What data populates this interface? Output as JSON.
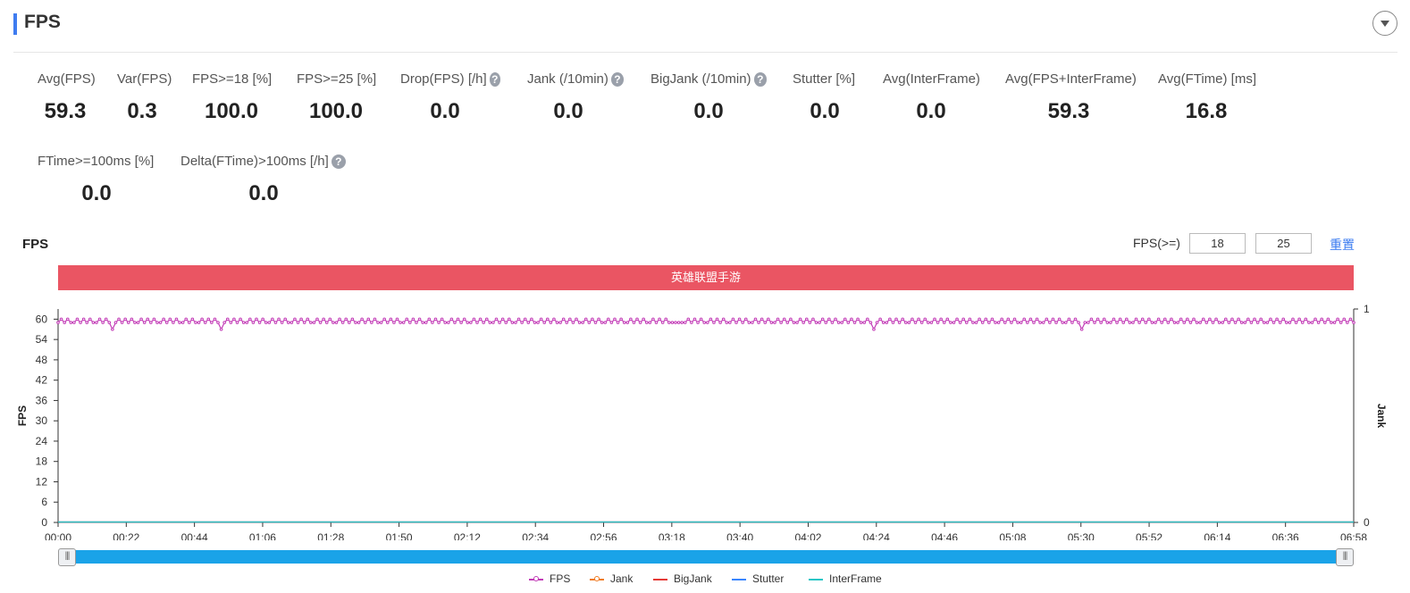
{
  "header": {
    "title": "FPS"
  },
  "metrics_row1": [
    {
      "label": "Avg(FPS)",
      "value": "59.3",
      "help": false
    },
    {
      "label": "Var(FPS)",
      "value": "0.3",
      "help": false
    },
    {
      "label": "FPS>=18 [%]",
      "value": "100.0",
      "help": false
    },
    {
      "label": "FPS>=25 [%]",
      "value": "100.0",
      "help": false
    },
    {
      "label": "Drop(FPS) [/h]",
      "value": "0.0",
      "help": true
    },
    {
      "label": "Jank (/10min)",
      "value": "0.0",
      "help": true
    },
    {
      "label": "BigJank (/10min)",
      "value": "0.0",
      "help": true
    },
    {
      "label": "Stutter [%]",
      "value": "0.0",
      "help": false
    },
    {
      "label": "Avg(InterFrame)",
      "value": "0.0",
      "help": false
    },
    {
      "label": "Avg(FPS+InterFrame)",
      "value": "59.3",
      "help": false
    },
    {
      "label": "Avg(FTime) [ms]",
      "value": "16.8",
      "help": false
    }
  ],
  "metrics_row2": [
    {
      "label": "FTime>=100ms [%]",
      "value": "0.0",
      "help": false
    },
    {
      "label": "Delta(FTime)>100ms [/h]",
      "value": "0.0",
      "help": true
    }
  ],
  "help_glyph": "?",
  "chart_section": {
    "title": "FPS",
    "filter_label": "FPS(>=)",
    "threshold_1": "18",
    "threshold_2": "25",
    "reset_label": "重置",
    "app_banner": "英雄联盟手游"
  },
  "colors": {
    "accent": "#3f7cf0",
    "banner": "#ea5563",
    "slider": "#1aa3e8",
    "fps": "#c23ab6",
    "jank": "#f07b22",
    "bigjank": "#e53935",
    "stutter": "#3a86ff",
    "interframe": "#26c6c6"
  },
  "chart_data": {
    "type": "line",
    "ylabel": "FPS",
    "y2label": "Jank",
    "ylim": [
      0,
      63
    ],
    "yticks": [
      0,
      6,
      12,
      18,
      24,
      30,
      36,
      42,
      48,
      54,
      60
    ],
    "y2lim": [
      0,
      1
    ],
    "y2ticks": [
      0,
      1
    ],
    "xlim": [
      "00:00",
      "06:58"
    ],
    "xticks": [
      "00:00",
      "00:22",
      "00:44",
      "01:06",
      "01:28",
      "01:50",
      "02:12",
      "02:34",
      "02:56",
      "03:18",
      "03:40",
      "04:02",
      "04:24",
      "04:46",
      "05:08",
      "05:30",
      "05:52",
      "06:14",
      "06:36",
      "06:58"
    ],
    "series": [
      {
        "name": "FPS",
        "color": "#c23ab6",
        "marker": "circle",
        "values": [
          59,
          60,
          59,
          60,
          59,
          59,
          60,
          59,
          60,
          59,
          60,
          59,
          59,
          60,
          59,
          60,
          59,
          57,
          59,
          60,
          59,
          60,
          59,
          60,
          59,
          59,
          60,
          59,
          60,
          59,
          60,
          59,
          59,
          60,
          59,
          60,
          59,
          60,
          59,
          59,
          60,
          59,
          60,
          59,
          59,
          60,
          59,
          60,
          59,
          60,
          59,
          57,
          59,
          60,
          59,
          60,
          59,
          60,
          59,
          59,
          60,
          59,
          60,
          59,
          60,
          59,
          59,
          60,
          59,
          60,
          59,
          60,
          59,
          59,
          60,
          59,
          60,
          59,
          60,
          59,
          59,
          60,
          59,
          60,
          59,
          60,
          59,
          59,
          60,
          59,
          60,
          59,
          60,
          59,
          59,
          60,
          59,
          60,
          59,
          60,
          59,
          59,
          60,
          59,
          60,
          59,
          60,
          59,
          59,
          60,
          59,
          60,
          59,
          60,
          59,
          59,
          60,
          59,
          60,
          59,
          60,
          59,
          59,
          60,
          59,
          60,
          59,
          60,
          59,
          59,
          60,
          59,
          60,
          59,
          60,
          59,
          59,
          60,
          59,
          60,
          59,
          60,
          59,
          59,
          60,
          59,
          60,
          59,
          60,
          59,
          59,
          60,
          59,
          60,
          59,
          60,
          59,
          59,
          60,
          59,
          60,
          59,
          60,
          59,
          59,
          60,
          59,
          60,
          59,
          60,
          59,
          59,
          60,
          59,
          60,
          59,
          60,
          59,
          59,
          60,
          59,
          60,
          59,
          60,
          59,
          59,
          60,
          59,
          60,
          59,
          60,
          59,
          59,
          59,
          59,
          59,
          59,
          60,
          59,
          60,
          59,
          60,
          59,
          59,
          60,
          59,
          60,
          59,
          60,
          59,
          59,
          60,
          59,
          60,
          59,
          60,
          59,
          59,
          60,
          59,
          60,
          59,
          60,
          59,
          59,
          60,
          59,
          60,
          59,
          60,
          59,
          59,
          60,
          59,
          60,
          59,
          60,
          59,
          59,
          60,
          59,
          60,
          59,
          60,
          59,
          59,
          60,
          59,
          60,
          59,
          60,
          59,
          59,
          60,
          59,
          57,
          59,
          60,
          59,
          59,
          60,
          59,
          60,
          59,
          60,
          59,
          59,
          60,
          59,
          60,
          59,
          60,
          59,
          59,
          60,
          59,
          60,
          59,
          60,
          59,
          59,
          60,
          59,
          60,
          59,
          60,
          59,
          59,
          60,
          59,
          60,
          59,
          60,
          59,
          59,
          60,
          59,
          60,
          59,
          60,
          59,
          59,
          60,
          59,
          60,
          59,
          60,
          59,
          59,
          60,
          59,
          60,
          59,
          60,
          59,
          59,
          60,
          59,
          60,
          59,
          57,
          59,
          59,
          60,
          59,
          60,
          59,
          60,
          59,
          59,
          60,
          59,
          60,
          59,
          60,
          59,
          59,
          60,
          59,
          60,
          59,
          60,
          59,
          59,
          60,
          59,
          60,
          59,
          60,
          59,
          59,
          60,
          59,
          60,
          59,
          60,
          59,
          59,
          60,
          59,
          60,
          59,
          60,
          59,
          59,
          60,
          59,
          60,
          59,
          60,
          59,
          59,
          60,
          59,
          60,
          59,
          60,
          59,
          59,
          60,
          59,
          60,
          59,
          60,
          59,
          59,
          60,
          59,
          60,
          59,
          60,
          59,
          59,
          60,
          59,
          60,
          59,
          60,
          59,
          59,
          60,
          59,
          60,
          59,
          60,
          59
        ]
      },
      {
        "name": "Jank",
        "color": "#f07b22",
        "marker": "circle",
        "constant": 0
      },
      {
        "name": "BigJank",
        "color": "#e53935",
        "marker": "none",
        "constant": 0
      },
      {
        "name": "Stutter",
        "color": "#3a86ff",
        "marker": "none",
        "constant": 0
      },
      {
        "name": "InterFrame",
        "color": "#26c6c6",
        "marker": "none",
        "constant": 0
      }
    ]
  },
  "slider": {
    "start": 0,
    "end": 1
  }
}
